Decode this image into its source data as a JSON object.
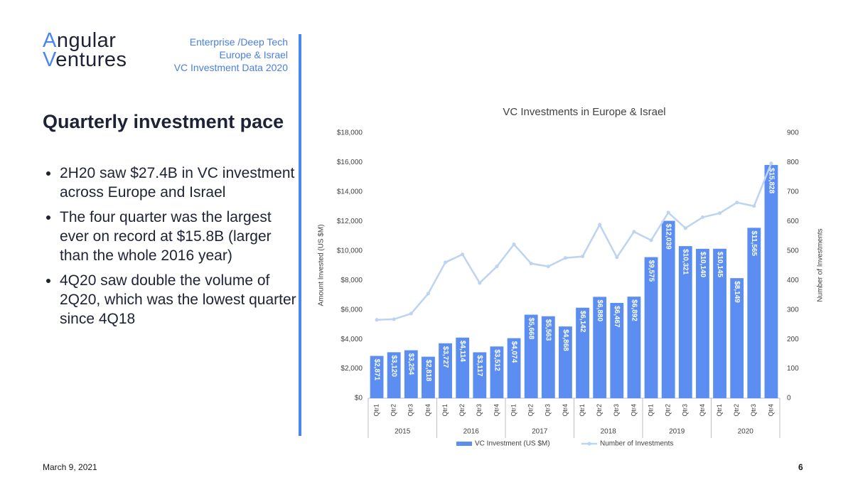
{
  "logo": {
    "line1": "Angular",
    "line2": "Ventures"
  },
  "header": {
    "lines": [
      "Enterprise /Deep Tech",
      "Europe & Israel",
      "VC Investment Data 2020"
    ]
  },
  "heading": "Quarterly investment pace",
  "bullets": [
    "2H20 saw $27.4B in VC investment across Europe and Israel",
    "The four quarter was the largest ever on record at $15.8B (larger than the whole 2016 year)",
    "4Q20 saw double the volume of 2Q20, which was the lowest quarter since 4Q18"
  ],
  "footer": {
    "date": "March 9, 2021",
    "page": "6"
  },
  "chart_data": {
    "type": "combo",
    "title": "VC Investments in Europe & Israel",
    "y_label": "Amount Invested (US $M)",
    "y2_label": "Number of Investments",
    "categories": [
      "Qtr1",
      "Qtr2",
      "Qtr3",
      "Qtr4",
      "Qtr1",
      "Qtr2",
      "Qtr3",
      "Qtr4",
      "Qtr1",
      "Qtr2",
      "Qtr3",
      "Qtr4",
      "Qtr1",
      "Qtr2",
      "Qtr3",
      "Qtr4",
      "Qtr1",
      "Qtr2",
      "Qtr3",
      "Qtr4",
      "Qtr1",
      "Qtr2",
      "Qtr3",
      "Qtr4"
    ],
    "years": [
      "2015",
      "2016",
      "2017",
      "2018",
      "2019",
      "2020"
    ],
    "series": [
      {
        "name": "VC Investment (US $M)",
        "type": "bar",
        "color": "#5b8ef0",
        "values": [
          2871,
          3120,
          3254,
          2818,
          3727,
          4114,
          3117,
          3512,
          4074,
          5668,
          5563,
          4868,
          6142,
          6880,
          6467,
          6892,
          9575,
          12039,
          10321,
          10140,
          10145,
          8149,
          11565,
          15828
        ],
        "value_labels": [
          "$2,871",
          "$3,120",
          "$3,254",
          "$2,818",
          "$3,727",
          "$4,114",
          "$3,117",
          "$3,512",
          "$4,074",
          "$5,668",
          "$5,563",
          "$4,868",
          "$6,142",
          "$6,880",
          "$6,467",
          "$6,892",
          "$9,575",
          "$12,039",
          "$10,321",
          "$10,140",
          "$10,145",
          "$8,149",
          "$11,565",
          "$15,828"
        ]
      },
      {
        "name": "Number of Investments",
        "type": "line",
        "axis": "y2",
        "color": "#bcd4f2",
        "values": [
          266,
          268,
          287,
          355,
          461,
          488,
          391,
          447,
          522,
          457,
          447,
          476,
          481,
          589,
          478,
          565,
          536,
          630,
          577,
          614,
          628,
          664,
          652,
          797
        ]
      }
    ],
    "ylim": [
      0,
      18000
    ],
    "yticks": [
      {
        "value": 0,
        "label": "$0"
      },
      {
        "value": 2000,
        "label": "$2,000"
      },
      {
        "value": 4000,
        "label": "$4,000"
      },
      {
        "value": 6000,
        "label": "$6,000"
      },
      {
        "value": 8000,
        "label": "$8,000"
      },
      {
        "value": 10000,
        "label": "$10,000"
      },
      {
        "value": 12000,
        "label": "$12,000"
      },
      {
        "value": 14000,
        "label": "$14,000"
      },
      {
        "value": 16000,
        "label": "$16,000"
      },
      {
        "value": 18000,
        "label": "$18,000"
      }
    ],
    "y2lim": [
      0,
      900
    ],
    "y2ticks": [
      0,
      100,
      200,
      300,
      400,
      500,
      600,
      700,
      800,
      900
    ],
    "legend": "bottom"
  }
}
